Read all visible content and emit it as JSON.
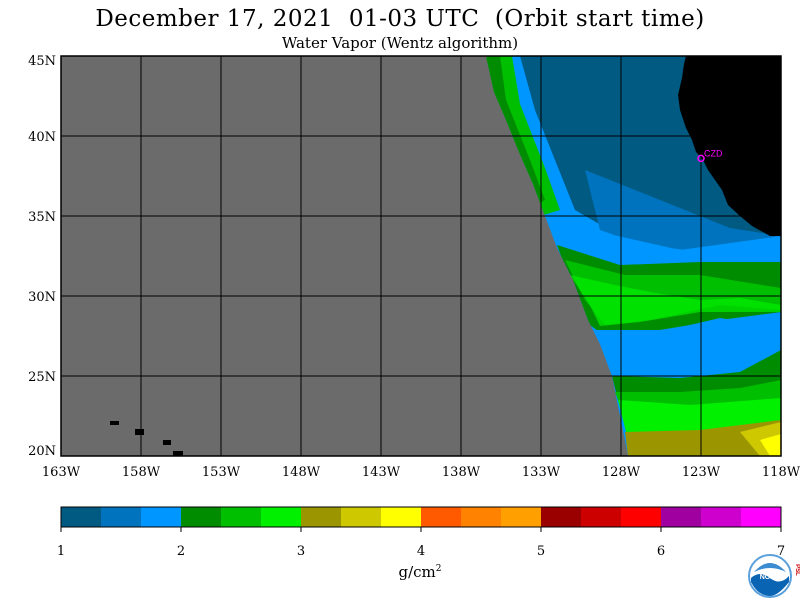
{
  "header": {
    "title": "December 17, 2021  01-03 UTC  (Orbit start time)",
    "subtitle": "Water Vapor (Wentz algorithm)"
  },
  "map": {
    "lon_ticks": [
      "163W",
      "158W",
      "153W",
      "148W",
      "143W",
      "138W",
      "133W",
      "128W",
      "123W",
      "118W"
    ],
    "lat_ticks": [
      "45N",
      "40N",
      "35N",
      "30N",
      "25N",
      "20N"
    ],
    "lon_range": [
      -163,
      -118
    ],
    "lat_range": [
      20,
      45
    ],
    "station": {
      "label": "CZD",
      "lon": -123.0,
      "lat": 38.6,
      "color": "#ff00ff"
    },
    "colors": {
      "nodata": "#6b6b6b",
      "land": "#000000",
      "grid": "#000000"
    }
  },
  "colorbar": {
    "labels": [
      "1",
      "2",
      "3",
      "4",
      "5",
      "6",
      "7"
    ],
    "range": [
      1,
      7
    ],
    "units_base": "g/cm",
    "units_exp": "2",
    "colors": [
      "#005a82",
      "#0073be",
      "#0096ff",
      "#008c00",
      "#00be00",
      "#00f000",
      "#9b9600",
      "#cdc800",
      "#ffff00",
      "#ff5a00",
      "#ff8200",
      "#ffa000",
      "#9b0000",
      "#cd0000",
      "#ff0000",
      "#a000a0",
      "#cd00cd",
      "#ff00ff"
    ]
  },
  "logo": {
    "name": "NOAA",
    "side_letters": "PSL"
  }
}
